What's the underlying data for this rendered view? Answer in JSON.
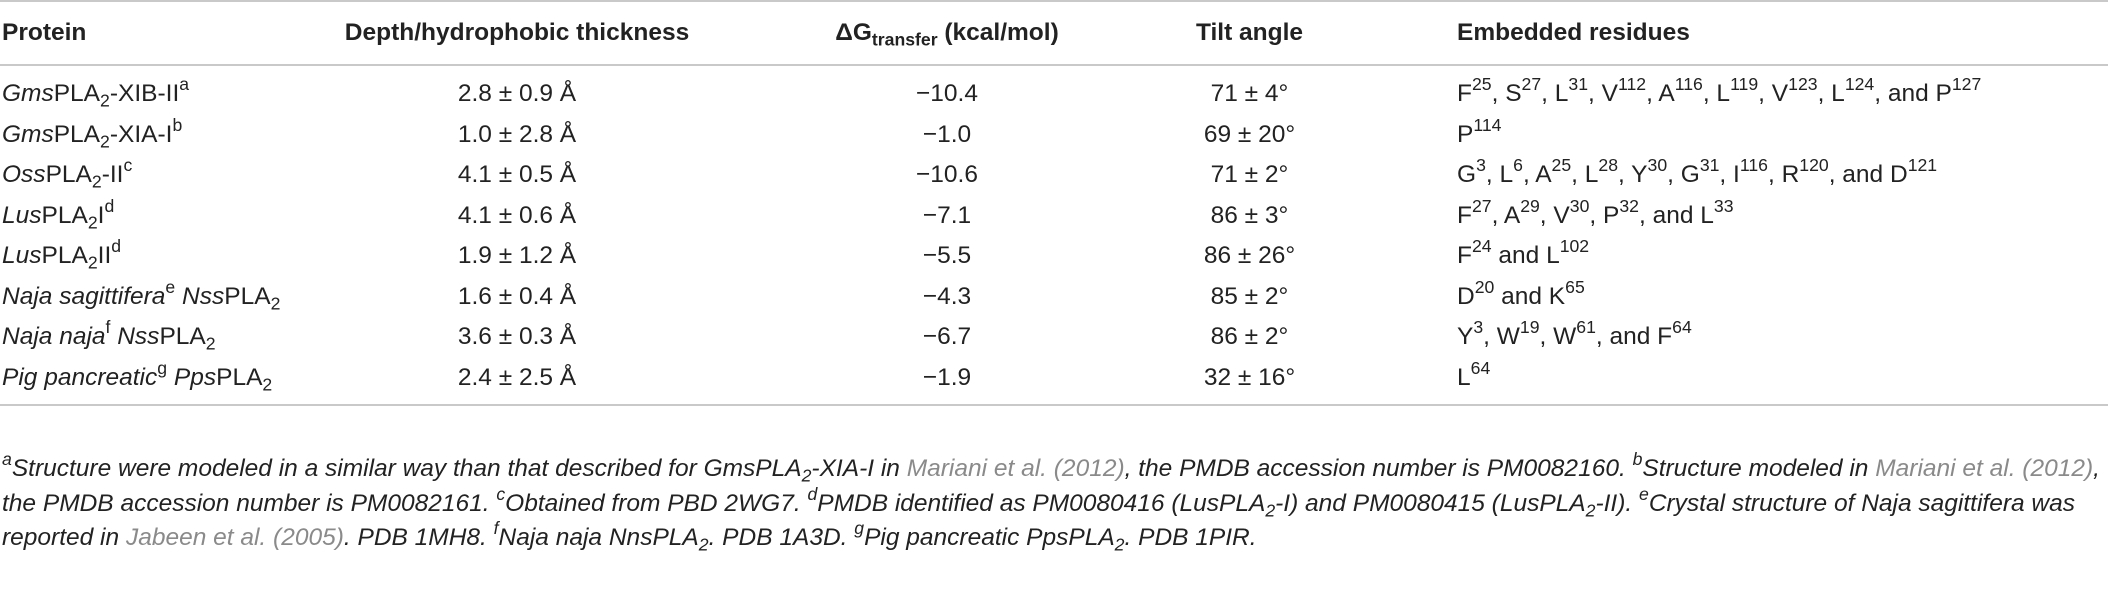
{
  "headers": {
    "protein": "Protein",
    "depth": "Depth/hydrophobic thickness",
    "dg_delta": "ΔG",
    "dg_sub": "transfer",
    "dg_unit": " (kcal/mol)",
    "tilt": "Tilt angle",
    "residues": "Embedded residues"
  },
  "rows": [
    {
      "protein": [
        {
          "t": "Gms",
          "i": true
        },
        {
          "t": "PLA"
        },
        {
          "t": "2",
          "sub": true
        },
        {
          "t": "-XIB-II"
        },
        {
          "t": "a",
          "sup": true
        }
      ],
      "depth": "2.8 ± 0.9 Å",
      "dg": "−10.4",
      "tilt": "71 ± 4°",
      "residues": [
        {
          "t": "F"
        },
        {
          "t": "25",
          "sup": true
        },
        {
          "t": ", S"
        },
        {
          "t": "27",
          "sup": true
        },
        {
          "t": ", L"
        },
        {
          "t": "31",
          "sup": true
        },
        {
          "t": ", V"
        },
        {
          "t": "112",
          "sup": true
        },
        {
          "t": ", A"
        },
        {
          "t": "116",
          "sup": true
        },
        {
          "t": ", L"
        },
        {
          "t": "119",
          "sup": true
        },
        {
          "t": ", V"
        },
        {
          "t": "123",
          "sup": true
        },
        {
          "t": ", L"
        },
        {
          "t": "124",
          "sup": true
        },
        {
          "t": ", and P"
        },
        {
          "t": "127",
          "sup": true
        }
      ]
    },
    {
      "protein": [
        {
          "t": "Gms",
          "i": true
        },
        {
          "t": "PLA"
        },
        {
          "t": "2",
          "sub": true
        },
        {
          "t": "-XIA-I"
        },
        {
          "t": "b",
          "sup": true
        }
      ],
      "depth": "1.0 ± 2.8 Å",
      "dg": "−1.0",
      "tilt": "69 ± 20°",
      "residues": [
        {
          "t": "P"
        },
        {
          "t": "114",
          "sup": true
        }
      ]
    },
    {
      "protein": [
        {
          "t": "Oss",
          "i": true
        },
        {
          "t": "PLA"
        },
        {
          "t": "2",
          "sub": true
        },
        {
          "t": "-II"
        },
        {
          "t": "c",
          "sup": true
        }
      ],
      "depth": "4.1 ± 0.5 Å",
      "dg": "−10.6",
      "tilt": "71 ± 2°",
      "residues": [
        {
          "t": "G"
        },
        {
          "t": "3",
          "sup": true
        },
        {
          "t": ", L"
        },
        {
          "t": "6",
          "sup": true
        },
        {
          "t": ", A"
        },
        {
          "t": "25",
          "sup": true
        },
        {
          "t": ", L"
        },
        {
          "t": "28",
          "sup": true
        },
        {
          "t": ", Y"
        },
        {
          "t": "30",
          "sup": true
        },
        {
          "t": ", G"
        },
        {
          "t": "31",
          "sup": true
        },
        {
          "t": ", I"
        },
        {
          "t": "116",
          "sup": true
        },
        {
          "t": ", R"
        },
        {
          "t": "120",
          "sup": true
        },
        {
          "t": ", and D"
        },
        {
          "t": "121",
          "sup": true
        }
      ]
    },
    {
      "protein": [
        {
          "t": "Lus",
          "i": true
        },
        {
          "t": "PLA"
        },
        {
          "t": "2",
          "sub": true
        },
        {
          "t": "I"
        },
        {
          "t": "d",
          "sup": true
        }
      ],
      "depth": "4.1 ± 0.6 Å",
      "dg": "−7.1",
      "tilt": "86 ± 3°",
      "residues": [
        {
          "t": "F"
        },
        {
          "t": "27",
          "sup": true
        },
        {
          "t": ", A"
        },
        {
          "t": "29",
          "sup": true
        },
        {
          "t": ", V"
        },
        {
          "t": "30",
          "sup": true
        },
        {
          "t": ", P"
        },
        {
          "t": "32",
          "sup": true
        },
        {
          "t": ", and L"
        },
        {
          "t": "33",
          "sup": true
        }
      ]
    },
    {
      "protein": [
        {
          "t": "Lus",
          "i": true
        },
        {
          "t": "PLA"
        },
        {
          "t": "2",
          "sub": true
        },
        {
          "t": "II"
        },
        {
          "t": "d",
          "sup": true
        }
      ],
      "depth": "1.9 ± 1.2 Å",
      "dg": "−5.5",
      "tilt": "86 ± 26°",
      "residues": [
        {
          "t": "F"
        },
        {
          "t": "24",
          "sup": true
        },
        {
          "t": " and L"
        },
        {
          "t": "102",
          "sup": true
        }
      ]
    },
    {
      "protein": [
        {
          "t": "Naja sagittifera",
          "i": true
        },
        {
          "t": "e",
          "sup": true
        },
        {
          "t": " "
        },
        {
          "t": "Nss",
          "i": true
        },
        {
          "t": "PLA"
        },
        {
          "t": "2",
          "sub": true
        }
      ],
      "depth": "1.6 ± 0.4 Å",
      "dg": "−4.3",
      "tilt": "85 ± 2°",
      "residues": [
        {
          "t": "D"
        },
        {
          "t": "20",
          "sup": true
        },
        {
          "t": " and K"
        },
        {
          "t": "65",
          "sup": true
        }
      ]
    },
    {
      "protein": [
        {
          "t": "Naja naja",
          "i": true
        },
        {
          "t": "f",
          "sup": true
        },
        {
          "t": " "
        },
        {
          "t": "Nss",
          "i": true
        },
        {
          "t": "PLA"
        },
        {
          "t": "2",
          "sub": true
        }
      ],
      "depth": "3.6 ± 0.3 Å",
      "dg": "−6.7",
      "tilt": "86 ± 2°",
      "residues": [
        {
          "t": "Y"
        },
        {
          "t": "3",
          "sup": true
        },
        {
          "t": ", W"
        },
        {
          "t": "19",
          "sup": true
        },
        {
          "t": ", W"
        },
        {
          "t": "61",
          "sup": true
        },
        {
          "t": ", and F"
        },
        {
          "t": "64",
          "sup": true
        }
      ]
    },
    {
      "protein": [
        {
          "t": "Pig pancreatic",
          "i": true
        },
        {
          "t": "g",
          "sup": true
        },
        {
          "t": " "
        },
        {
          "t": "Pps",
          "i": true
        },
        {
          "t": "PLA"
        },
        {
          "t": "2",
          "sub": true
        }
      ],
      "depth": "2.4 ± 2.5 Å",
      "dg": "−1.9",
      "tilt": "32 ± 16°",
      "residues": [
        {
          "t": "L"
        },
        {
          "t": "64",
          "sup": true
        }
      ]
    }
  ],
  "footnotes": [
    {
      "t": "a",
      "sup": true
    },
    {
      "t": "Structure were modeled in a similar way than that described for GmsPLA"
    },
    {
      "t": "2",
      "sub": true
    },
    {
      "t": "-XIA-I in "
    },
    {
      "t": "Mariani et al. (2012)",
      "ref": true
    },
    {
      "t": ", the PMDB accession number is PM0082160. "
    },
    {
      "t": "b",
      "sup": true
    },
    {
      "t": "Structure modeled in "
    },
    {
      "t": "Mariani et al. (2012)",
      "ref": true
    },
    {
      "t": ", the PMDB accession number is PM0082161. "
    },
    {
      "t": "c",
      "sup": true
    },
    {
      "t": "Obtained from PBD 2WG7. "
    },
    {
      "t": "d",
      "sup": true
    },
    {
      "t": "PMDB identified as PM0080416 (LusPLA"
    },
    {
      "t": "2",
      "sub": true
    },
    {
      "t": "-I) and PM0080415 (LusPLA"
    },
    {
      "t": "2",
      "sub": true
    },
    {
      "t": "-II). "
    },
    {
      "t": "e",
      "sup": true
    },
    {
      "t": "Crystal structure of Naja sagittifera was reported in "
    },
    {
      "t": "Jabeen et al. (2005)",
      "ref": true
    },
    {
      "t": ". PDB 1MH8. "
    },
    {
      "t": "f",
      "sup": true
    },
    {
      "t": "Naja naja NnsPLA"
    },
    {
      "t": "2",
      "sub": true
    },
    {
      "t": ". PDB 1A3D. "
    },
    {
      "t": "g",
      "sup": true
    },
    {
      "t": "Pig pancreatic PpsPLA"
    },
    {
      "t": "2",
      "sub": true
    },
    {
      "t": ". PDB 1PIR."
    }
  ]
}
